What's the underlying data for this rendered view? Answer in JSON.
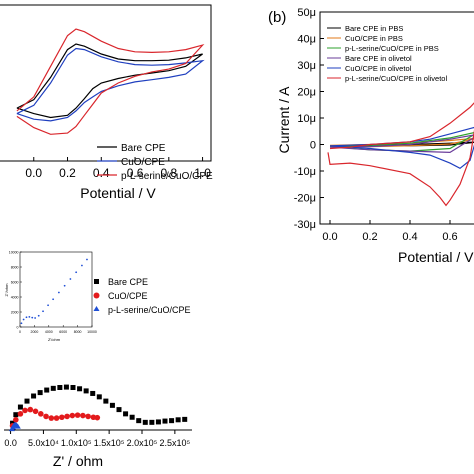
{
  "chart_data": [
    {
      "panel": "a",
      "type": "line",
      "title": "",
      "xlabel": "Potential / V",
      "ylabel": "",
      "xlim": [
        -0.2,
        1.05
      ],
      "ylim": [
        -1.4,
        1.4
      ],
      "xticks": [
        "1.0",
        "0.8",
        "0.6",
        "0.4",
        "0.2",
        "0.0"
      ],
      "xtick_values": [
        1.0,
        0.8,
        0.6,
        0.4,
        0.2,
        0.0
      ],
      "legend_position": "bottom-right",
      "series": [
        {
          "name": "Bare CPE",
          "color": "#000000",
          "x": [
            -0.1,
            0.0,
            0.1,
            0.2,
            0.25,
            0.3,
            0.4,
            0.5,
            0.6,
            0.7,
            0.8,
            0.9,
            1.0,
            0.9,
            0.8,
            0.7,
            0.6,
            0.5,
            0.4,
            0.35,
            0.3,
            0.25,
            0.2,
            0.1,
            0.0,
            -0.1
          ],
          "y": [
            -0.45,
            -0.3,
            0.1,
            0.6,
            0.7,
            0.66,
            0.52,
            0.43,
            0.4,
            0.4,
            0.41,
            0.45,
            0.52,
            0.3,
            0.22,
            0.18,
            0.14,
            0.08,
            0.0,
            -0.1,
            -0.28,
            -0.45,
            -0.58,
            -0.62,
            -0.55,
            -0.45
          ]
        },
        {
          "name": "CuO/CPE",
          "color": "#1f3fbf",
          "x": [
            -0.1,
            0.0,
            0.1,
            0.2,
            0.25,
            0.3,
            0.4,
            0.5,
            0.6,
            0.7,
            0.8,
            0.9,
            1.0,
            0.9,
            0.8,
            0.7,
            0.6,
            0.5,
            0.4,
            0.35,
            0.3,
            0.25,
            0.2,
            0.1,
            0.0,
            -0.1
          ],
          "y": [
            -0.55,
            -0.4,
            0.0,
            0.5,
            0.62,
            0.6,
            0.47,
            0.38,
            0.33,
            0.32,
            0.33,
            0.36,
            0.4,
            0.16,
            0.1,
            0.06,
            0.02,
            -0.05,
            -0.15,
            -0.25,
            -0.35,
            -0.5,
            -0.62,
            -0.68,
            -0.65,
            -0.55
          ]
        },
        {
          "name": "p-L-serine/CuO/CPE",
          "color": "#d9262c",
          "x": [
            -0.1,
            0.0,
            0.1,
            0.2,
            0.25,
            0.3,
            0.4,
            0.5,
            0.6,
            0.7,
            0.8,
            0.9,
            1.0,
            0.9,
            0.8,
            0.7,
            0.6,
            0.5,
            0.4,
            0.35,
            0.3,
            0.25,
            0.2,
            0.1,
            0.0,
            -0.1
          ],
          "y": [
            -0.5,
            -0.25,
            0.3,
            0.85,
            0.97,
            0.92,
            0.75,
            0.62,
            0.56,
            0.55,
            0.56,
            0.6,
            0.68,
            0.35,
            0.25,
            0.2,
            0.12,
            0.0,
            -0.18,
            -0.38,
            -0.58,
            -0.78,
            -0.9,
            -0.92,
            -0.8,
            -0.6
          ]
        }
      ]
    },
    {
      "panel": "b",
      "type": "line",
      "label": "(b)",
      "title": "",
      "xlabel": "Potential / V",
      "ylabel": "Current / A",
      "xlim": [
        -0.05,
        0.75
      ],
      "ylim": [
        -30,
        50
      ],
      "yticks": [
        "50μ",
        "40μ",
        "30μ",
        "20μ",
        "10μ",
        "0",
        "-10μ",
        "-20μ",
        "-30μ"
      ],
      "ytick_values": [
        50,
        40,
        30,
        20,
        10,
        0,
        -10,
        -20,
        -30
      ],
      "xticks": [
        "0.0",
        "0.2",
        "0.4",
        "0.6"
      ],
      "xtick_values": [
        0.0,
        0.2,
        0.4,
        0.6
      ],
      "legend_position": "top-left",
      "series": [
        {
          "name": "Bare CPE in PBS",
          "color": "#000000",
          "x": [
            0.0,
            0.2,
            0.4,
            0.6,
            0.75,
            0.6,
            0.4,
            0.2,
            0.0
          ],
          "y": [
            -0.5,
            -0.3,
            0.0,
            0.5,
            1.0,
            -0.2,
            -0.5,
            -0.6,
            -0.5
          ]
        },
        {
          "name": "CuO/CPE in PBS",
          "color": "#e07a1a",
          "x": [
            0.0,
            0.2,
            0.4,
            0.6,
            0.75,
            0.6,
            0.4,
            0.2,
            0.0
          ],
          "y": [
            -0.3,
            0.0,
            0.5,
            1.5,
            2.5,
            0.2,
            -0.5,
            -0.8,
            -0.3
          ]
        },
        {
          "name": "p-L-serine/CuO/CPE in PBS",
          "color": "#2ca02c",
          "x": [
            0.0,
            0.2,
            0.4,
            0.6,
            0.75,
            0.6,
            0.4,
            0.2,
            0.0
          ],
          "y": [
            -0.8,
            -0.5,
            0.5,
            2.5,
            5.0,
            -1.5,
            -2.5,
            -2.0,
            -0.8
          ]
        },
        {
          "name": "Bare CPE in olivetol",
          "color": "#6a3d9a",
          "x": [
            0.0,
            0.2,
            0.4,
            0.6,
            0.75,
            0.6,
            0.4,
            0.2,
            0.0
          ],
          "y": [
            -1.0,
            -0.8,
            0.0,
            2.0,
            4.0,
            -3.0,
            -2.5,
            -2.0,
            -1.0
          ]
        },
        {
          "name": "CuO/CPE in olivetol",
          "color": "#1f3fbf",
          "x": [
            0.0,
            0.2,
            0.4,
            0.5,
            0.6,
            0.7,
            0.75,
            0.7,
            0.65,
            0.6,
            0.5,
            0.4,
            0.2,
            0.0
          ],
          "y": [
            -0.5,
            0.0,
            1.0,
            2.0,
            4.0,
            6.0,
            7.0,
            -6.0,
            -9.0,
            -7.0,
            -4.0,
            -3.0,
            -1.5,
            -0.5
          ]
        },
        {
          "name": "p-L-serine/CuO/CPE in olivetol",
          "color": "#d9262c",
          "x": [
            0.0,
            0.1,
            0.2,
            0.4,
            0.5,
            0.6,
            0.7,
            0.75,
            0.7,
            0.65,
            0.6,
            0.58,
            0.55,
            0.5,
            0.4,
            0.2,
            0.1,
            0.0,
            -0.01
          ],
          "y": [
            -1.5,
            -1.0,
            0.0,
            1.0,
            3.0,
            8.0,
            14.0,
            18.0,
            -5.0,
            -15.0,
            -21.0,
            -23.0,
            -20.0,
            -16.0,
            -11.0,
            -8.0,
            -7.0,
            -7.5,
            -3.0
          ]
        }
      ]
    },
    {
      "panel": "c",
      "type": "scatter",
      "title": "",
      "xlabel": "Z' / ohm",
      "ylabel": "",
      "xlim": [
        -10000,
        270000
      ],
      "ylim": [
        0,
        100000
      ],
      "xticks": [
        "0.0",
        "5.0x10⁴",
        "1.0x10⁵",
        "1.5x10⁵",
        "2.0x10⁵",
        "2.5x10⁵"
      ],
      "xtick_values": [
        0,
        50000,
        100000,
        150000,
        200000,
        250000
      ],
      "legend_position": "top-right",
      "series": [
        {
          "name": "Bare CPE",
          "color": "#000000",
          "marker": "square",
          "x": [
            3000,
            8000,
            15000,
            25000,
            35000,
            45000,
            55000,
            65000,
            75000,
            85000,
            95000,
            105000,
            115000,
            125000,
            135000,
            145000,
            155000,
            165000,
            175000,
            185000,
            195000,
            205000,
            215000,
            225000,
            235000,
            245000,
            255000,
            265000
          ],
          "y": [
            8000,
            18000,
            27000,
            34000,
            40000,
            44000,
            47000,
            49000,
            50000,
            50500,
            50000,
            48500,
            46000,
            43000,
            39000,
            34000,
            29000,
            24000,
            19000,
            15000,
            11000,
            9000,
            9000,
            9500,
            10500,
            11000,
            12000,
            12500
          ]
        },
        {
          "name": "CuO/CPE",
          "color": "#e31a1c",
          "marker": "circle",
          "x": [
            3000,
            8000,
            15000,
            22000,
            30000,
            38000,
            46000,
            54000,
            62000,
            70000,
            78000,
            86000,
            94000,
            102000,
            110000,
            118000,
            126000,
            132000
          ],
          "y": [
            5000,
            12000,
            19000,
            23000,
            24000,
            22000,
            19000,
            16000,
            14000,
            14000,
            15000,
            16000,
            17000,
            17500,
            17000,
            16000,
            15000,
            14500
          ]
        },
        {
          "name": "p-L-serine/CuO/CPE",
          "color": "#1f4fd6",
          "marker": "triangle",
          "x": [
            2000,
            3500,
            5000,
            6500,
            8000,
            9500,
            11000
          ],
          "y": [
            1000,
            3000,
            5000,
            6000,
            6000,
            5000,
            4000
          ]
        }
      ]
    },
    {
      "panel": "c-inset",
      "type": "line",
      "title": "",
      "xlabel": "Z'/ohm",
      "ylabel": "Z''/ohm",
      "xlim": [
        0,
        10000
      ],
      "ylim": [
        0,
        10000
      ],
      "xticks": [
        "0",
        "2000",
        "4000",
        "6000",
        "8000",
        "10000"
      ],
      "xtick_values": [
        0,
        2000,
        4000,
        6000,
        8000,
        10000
      ],
      "yticks": [
        "10000",
        "8000",
        "6000",
        "4000",
        "2000",
        "0"
      ],
      "ytick_values": [
        10000,
        8000,
        6000,
        4000,
        2000,
        0
      ],
      "series": [
        {
          "name": "p-L-serine/CuO/CPE",
          "color": "#1f4fd6",
          "x": [
            200,
            500,
            900,
            1300,
            1700,
            2100,
            2600,
            3200,
            3900,
            4600,
            5400,
            6200,
            7000,
            7800,
            8600,
            9300
          ],
          "y": [
            500,
            1000,
            1300,
            1350,
            1250,
            1200,
            1500,
            2100,
            2900,
            3700,
            4600,
            5500,
            6400,
            7300,
            8200,
            9000
          ]
        }
      ]
    }
  ]
}
